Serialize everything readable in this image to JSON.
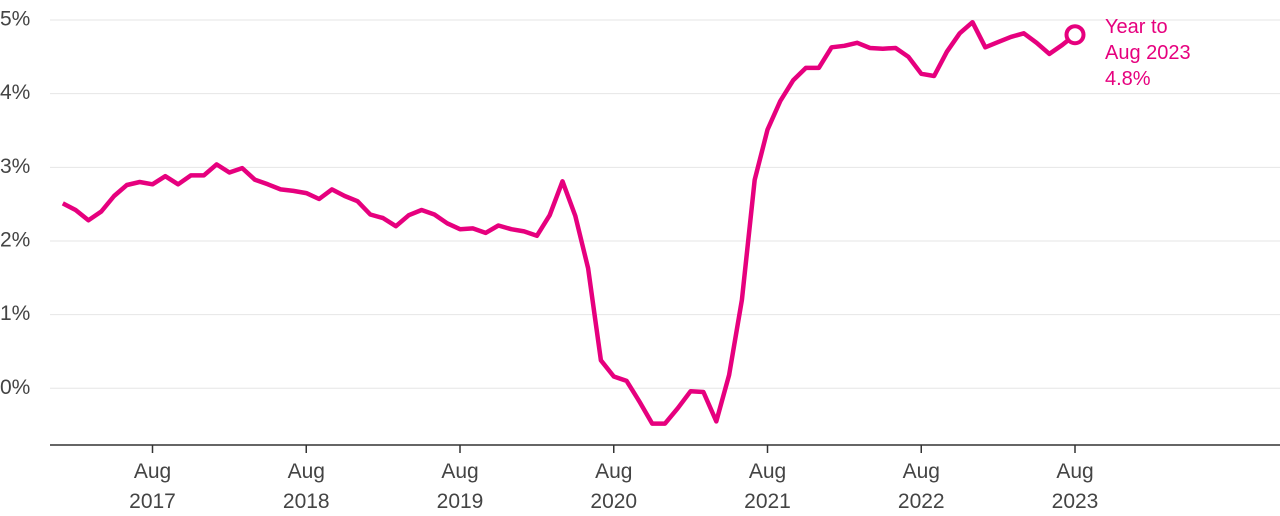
{
  "chart_data": {
    "type": "line",
    "x": [
      "2017-01",
      "2017-02",
      "2017-03",
      "2017-04",
      "2017-05",
      "2017-06",
      "2017-07",
      "2017-08",
      "2017-09",
      "2017-10",
      "2017-11",
      "2017-12",
      "2018-01",
      "2018-02",
      "2018-03",
      "2018-04",
      "2018-05",
      "2018-06",
      "2018-07",
      "2018-08",
      "2018-09",
      "2018-10",
      "2018-11",
      "2018-12",
      "2019-01",
      "2019-02",
      "2019-03",
      "2019-04",
      "2019-05",
      "2019-06",
      "2019-07",
      "2019-08",
      "2019-09",
      "2019-10",
      "2019-11",
      "2019-12",
      "2020-01",
      "2020-02",
      "2020-03",
      "2020-04",
      "2020-05",
      "2020-06",
      "2020-07",
      "2020-08",
      "2020-09",
      "2020-10",
      "2020-11",
      "2020-12",
      "2021-01",
      "2021-02",
      "2021-03",
      "2021-04",
      "2021-05",
      "2021-06",
      "2021-07",
      "2021-08",
      "2021-09",
      "2021-10",
      "2021-11",
      "2021-12",
      "2022-01",
      "2022-02",
      "2022-03",
      "2022-04",
      "2022-05",
      "2022-06",
      "2022-07",
      "2022-08",
      "2022-09",
      "2022-10",
      "2022-11",
      "2022-12",
      "2023-01",
      "2023-02",
      "2023-03",
      "2023-04",
      "2023-05",
      "2023-06",
      "2023-07",
      "2023-08"
    ],
    "series": [
      {
        "color": "#e6007e",
        "values": [
          2.51,
          2.42,
          2.28,
          2.4,
          2.61,
          2.76,
          2.8,
          2.77,
          2.88,
          2.77,
          2.89,
          2.89,
          3.04,
          2.93,
          2.99,
          2.83,
          2.77,
          2.7,
          2.68,
          2.65,
          2.57,
          2.7,
          2.61,
          2.54,
          2.36,
          2.31,
          2.2,
          2.35,
          2.42,
          2.36,
          2.24,
          2.16,
          2.17,
          2.11,
          2.21,
          2.16,
          2.13,
          2.07,
          2.35,
          2.81,
          2.34,
          1.63,
          0.38,
          0.16,
          0.1,
          -0.18,
          -0.48,
          -0.48,
          -0.27,
          -0.04,
          -0.05,
          -0.45,
          0.18,
          1.2,
          2.83,
          3.51,
          3.9,
          4.18,
          4.35,
          4.35,
          4.63,
          4.65,
          4.69,
          4.62,
          4.61,
          4.62,
          4.5,
          4.27,
          4.24,
          4.57,
          4.82,
          4.97,
          4.63,
          4.7,
          4.77,
          4.82,
          4.69,
          4.54,
          4.66,
          4.8
        ]
      }
    ],
    "annotation": [
      "Year to",
      "Aug 2023",
      "4.8%"
    ],
    "xlim": [
      "2016-12",
      "2024-12"
    ],
    "xticks": [
      {
        "value": "2017-08",
        "label": "Aug 2017"
      },
      {
        "value": "2018-08",
        "label": "Aug 2018"
      },
      {
        "value": "2019-08",
        "label": "Aug 2019"
      },
      {
        "value": "2020-08",
        "label": "Aug 2020"
      },
      {
        "value": "2021-08",
        "label": "Aug 2021"
      },
      {
        "value": "2022-08",
        "label": "Aug 2022"
      },
      {
        "value": "2023-08",
        "label": "Aug 2023"
      }
    ],
    "ylim": [
      -0.77,
      5
    ],
    "yticks": [
      {
        "value": 0,
        "label": "0%"
      },
      {
        "value": 1,
        "label": "1%"
      },
      {
        "value": 2,
        "label": "2%"
      },
      {
        "value": 3,
        "label": "3%"
      },
      {
        "value": 4,
        "label": "4%"
      },
      {
        "value": 5,
        "label": "5%"
      }
    ],
    "grid": true
  }
}
